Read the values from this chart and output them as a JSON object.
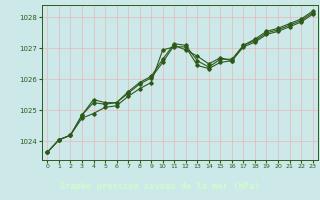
{
  "xlabel": "Graphe pression niveau de la mer (hPa)",
  "plot_bg_color": "#cce8e8",
  "outer_bg_color": "#cce8e8",
  "bottom_bar_color": "#2d5a27",
  "grid_color": "#e8b8b8",
  "line_color": "#2d5a1b",
  "label_color": "#2d5a1b",
  "bottom_text_color": "#ccffcc",
  "xlim": [
    -0.5,
    23.5
  ],
  "ylim": [
    1023.4,
    1028.4
  ],
  "yticks": [
    1024,
    1025,
    1026,
    1027,
    1028
  ],
  "xticks": [
    0,
    1,
    2,
    3,
    4,
    5,
    6,
    7,
    8,
    9,
    10,
    11,
    12,
    13,
    14,
    15,
    16,
    17,
    18,
    19,
    20,
    21,
    22,
    23
  ],
  "series1": [
    1023.65,
    1024.05,
    1024.2,
    1024.75,
    1024.9,
    1025.1,
    1025.15,
    1025.45,
    1025.7,
    1025.9,
    1026.95,
    1027.05,
    1027.05,
    1026.45,
    1026.35,
    1026.55,
    1026.6,
    1027.05,
    1027.2,
    1027.45,
    1027.55,
    1027.7,
    1027.85,
    1028.1
  ],
  "series2": [
    1023.65,
    1024.05,
    1024.2,
    1024.85,
    1025.25,
    1025.2,
    1025.25,
    1025.55,
    1025.85,
    1026.05,
    1026.55,
    1027.1,
    1026.95,
    1026.75,
    1026.5,
    1026.7,
    1026.6,
    1027.1,
    1027.25,
    1027.5,
    1027.6,
    1027.75,
    1027.9,
    1028.15
  ],
  "series3": [
    1023.65,
    1024.05,
    1024.2,
    1024.85,
    1025.35,
    1025.25,
    1025.25,
    1025.6,
    1025.9,
    1026.1,
    1026.65,
    1027.15,
    1027.1,
    1026.6,
    1026.4,
    1026.65,
    1026.65,
    1027.1,
    1027.3,
    1027.55,
    1027.65,
    1027.8,
    1027.95,
    1028.2
  ],
  "fig_width": 3.2,
  "fig_height": 2.0
}
